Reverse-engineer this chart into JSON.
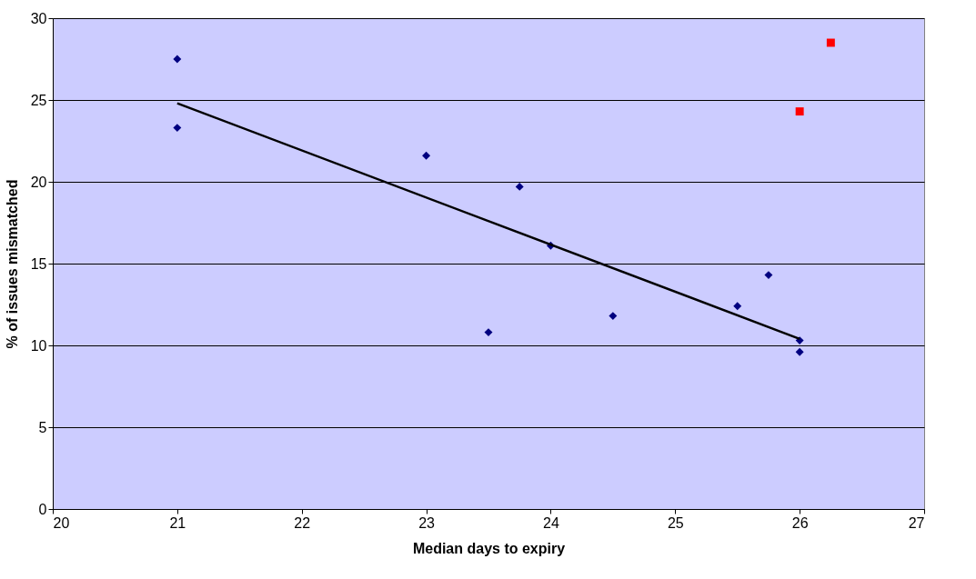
{
  "chart_data": {
    "type": "scatter",
    "xlabel": "Median days to expiry",
    "ylabel": "% of issues mismatched",
    "xlim": [
      20,
      27
    ],
    "xticks": [
      20,
      21,
      22,
      23,
      24,
      25,
      26,
      27
    ],
    "ylim": [
      0,
      30
    ],
    "yticks": [
      0,
      5,
      10,
      15,
      20,
      25,
      30
    ],
    "grid": "y",
    "series": [
      {
        "color": "#000080",
        "marker": "diamond",
        "x": [
          21,
          21,
          23,
          23.5,
          23.75,
          24,
          24.5,
          25.5,
          25.75,
          26,
          26
        ],
        "values": [
          27.5,
          23.3,
          21.6,
          10.8,
          19.7,
          16.1,
          11.8,
          12.4,
          14.3,
          10.3,
          9.6
        ]
      },
      {
        "color": "#ff0000",
        "marker": "square",
        "x": [
          26,
          26.25
        ],
        "values": [
          24.3,
          28.5
        ]
      },
      {
        "type": "line",
        "color": "#000000",
        "marker": "none",
        "line_style": "solid",
        "x": [
          21,
          26
        ],
        "values": [
          24.8,
          10.4
        ]
      }
    ]
  }
}
